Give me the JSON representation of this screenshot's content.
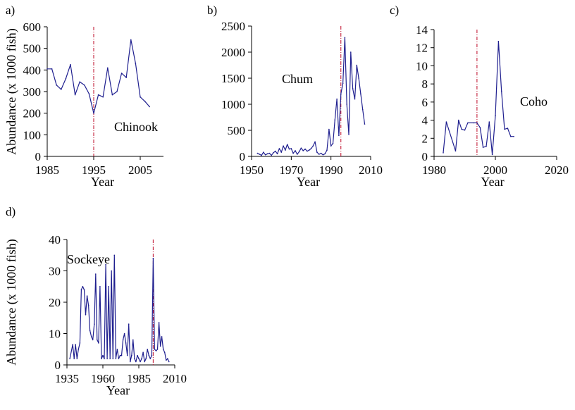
{
  "figure": {
    "ylabel": "Abundance (x 1000 fish)"
  },
  "colors": {
    "line": "#1f1f8f",
    "marker": "#c41e3a",
    "axis": "#000000"
  },
  "chart_data": [
    {
      "type": "line",
      "panel": "a)",
      "species": "Chinook",
      "xlabel": "Year",
      "ylabel": "Abundance (x 1000 fish)",
      "xlim": [
        1985,
        2010
      ],
      "ylim": [
        0,
        600
      ],
      "xticks": [
        1985,
        1995,
        2005
      ],
      "yticks": [
        0,
        100,
        200,
        300,
        400,
        500,
        600
      ],
      "reference_year": 1995,
      "x": [
        1985,
        1986,
        1987,
        1988,
        1989,
        1990,
        1991,
        1992,
        1993,
        1994,
        1995,
        1996,
        1997,
        1998,
        1999,
        2000,
        2001,
        2002,
        2003,
        2004,
        2005,
        2006,
        2007
      ],
      "values": [
        405,
        405,
        330,
        310,
        360,
        425,
        285,
        345,
        330,
        290,
        200,
        285,
        275,
        410,
        285,
        300,
        385,
        365,
        540,
        430,
        275,
        255,
        230
      ]
    },
    {
      "type": "line",
      "panel": "b)",
      "species": "Chum",
      "xlabel": "Year",
      "ylabel": "",
      "xlim": [
        1950,
        2010
      ],
      "ylim": [
        0,
        2500
      ],
      "xticks": [
        1950,
        1970,
        1990,
        2010
      ],
      "yticks": [
        0,
        500,
        1000,
        1500,
        2000,
        2500
      ],
      "reference_year": 1995,
      "x": [
        1953,
        1954,
        1955,
        1956,
        1957,
        1958,
        1959,
        1960,
        1961,
        1962,
        1963,
        1964,
        1965,
        1966,
        1967,
        1968,
        1969,
        1970,
        1971,
        1972,
        1973,
        1974,
        1975,
        1976,
        1977,
        1978,
        1979,
        1980,
        1981,
        1982,
        1983,
        1984,
        1985,
        1986,
        1987,
        1988,
        1989,
        1990,
        1991,
        1992,
        1993,
        1994,
        1995,
        1996,
        1997,
        1998,
        1999,
        2000,
        2001,
        2002,
        2003,
        2004,
        2005,
        2006,
        2007
      ],
      "values": [
        60,
        40,
        20,
        80,
        30,
        50,
        60,
        20,
        70,
        100,
        50,
        150,
        80,
        200,
        120,
        230,
        140,
        150,
        60,
        110,
        40,
        90,
        160,
        110,
        140,
        100,
        120,
        150,
        200,
        280,
        80,
        40,
        60,
        30,
        50,
        120,
        520,
        200,
        250,
        700,
        1100,
        400,
        1200,
        1400,
        2280,
        1000,
        420,
        2000,
        1300,
        1100,
        1750,
        1500,
        1200,
        900,
        620
      ]
    },
    {
      "type": "line",
      "panel": "c)",
      "species": "Coho",
      "xlabel": "Year",
      "ylabel": "",
      "xlim": [
        1980,
        2020
      ],
      "ylim": [
        0,
        14
      ],
      "xticks": [
        1980,
        2000,
        2020
      ],
      "yticks": [
        0,
        2,
        4,
        6,
        8,
        10,
        12,
        14
      ],
      "reference_year": 1994,
      "x": [
        1983,
        1984,
        1987,
        1988,
        1989,
        1990,
        1991,
        1993,
        1994,
        1995,
        1996,
        1997,
        1998,
        1999,
        2000,
        2001,
        2002,
        2003,
        2004,
        2005,
        2006
      ],
      "values": [
        0.4,
        3.8,
        0.6,
        4.0,
        3.0,
        2.9,
        3.7,
        3.7,
        3.7,
        3.2,
        1.0,
        1.1,
        3.8,
        0.2,
        4.5,
        12.7,
        7.2,
        3.0,
        3.1,
        2.2,
        2.2
      ]
    },
    {
      "type": "line",
      "panel": "d)",
      "species": "Sockeye",
      "xlabel": "Year",
      "ylabel": "Abundance (x 1000 fish)",
      "xlim": [
        1935,
        2010
      ],
      "ylim": [
        0,
        40
      ],
      "xticks": [
        1935,
        1960,
        1985,
        2010
      ],
      "yticks": [
        0,
        10,
        20,
        30,
        40
      ],
      "reference_year": 1995,
      "x": [
        1937,
        1939,
        1940,
        1941,
        1942,
        1943,
        1944,
        1945,
        1946,
        1947,
        1948,
        1949,
        1950,
        1951,
        1952,
        1953,
        1954,
        1955,
        1956,
        1957,
        1958,
        1959,
        1960,
        1961,
        1962,
        1963,
        1964,
        1965,
        1966,
        1967,
        1968,
        1969,
        1970,
        1971,
        1972,
        1973,
        1974,
        1975,
        1976,
        1977,
        1978,
        1979,
        1980,
        1981,
        1982,
        1983,
        1984,
        1985,
        1986,
        1987,
        1988,
        1989,
        1990,
        1991,
        1992,
        1993,
        1994,
        1995,
        1996,
        1997,
        1998,
        1999,
        2000,
        2001,
        2002,
        2003,
        2004,
        2005,
        2006
      ],
      "values": [
        2,
        6.5,
        2,
        6.5,
        2,
        5,
        7,
        24,
        25,
        24,
        16,
        22,
        19,
        11,
        9,
        8,
        13,
        29,
        8,
        7,
        25,
        2,
        3,
        2,
        32,
        2,
        25,
        2,
        30,
        2,
        35,
        2,
        5,
        2,
        3,
        3,
        8,
        10,
        7,
        3,
        13,
        1,
        3,
        8,
        2,
        1,
        3,
        2,
        1,
        2,
        4,
        1,
        2,
        5,
        3,
        2,
        3,
        34,
        5,
        4.5,
        5,
        13.5,
        6,
        9,
        5,
        4,
        1.5,
        2,
        1
      ]
    }
  ]
}
